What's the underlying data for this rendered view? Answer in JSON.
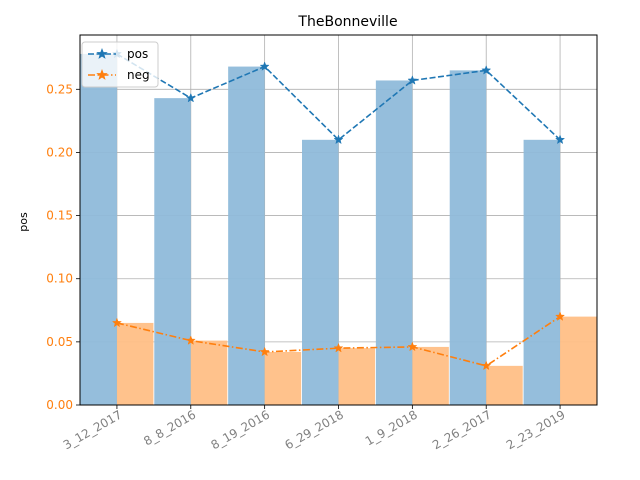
{
  "chart_data": {
    "type": "bar",
    "title": "TheBonneville",
    "xlabel": "",
    "ylabel": "pos",
    "categories": [
      "3_12_2017",
      "8_8_2016",
      "8_19_2016",
      "6_29_2018",
      "1_9_2018",
      "2_26_2017",
      "2_23_2019"
    ],
    "ylim": [
      0,
      0.293
    ],
    "yticks": [
      "0.00",
      "0.05",
      "0.10",
      "0.15",
      "0.20",
      "0.25"
    ],
    "grid": true,
    "legend_position": "top-left",
    "series": [
      {
        "name": "pos",
        "values": [
          0.278,
          0.243,
          0.268,
          0.21,
          0.257,
          0.265,
          0.21
        ],
        "color": "#1f77b4",
        "bar_color": "#8fbbda",
        "line_style": "dashed",
        "marker": "star"
      },
      {
        "name": "neg",
        "values": [
          0.065,
          0.051,
          0.042,
          0.045,
          0.046,
          0.031,
          0.07
        ],
        "color": "#ff7f0e",
        "bar_color": "#ffbf86",
        "line_style": "dashdot",
        "marker": "star"
      }
    ],
    "ytick_color": "#ff7f0e",
    "xtick_color": "#808080"
  }
}
